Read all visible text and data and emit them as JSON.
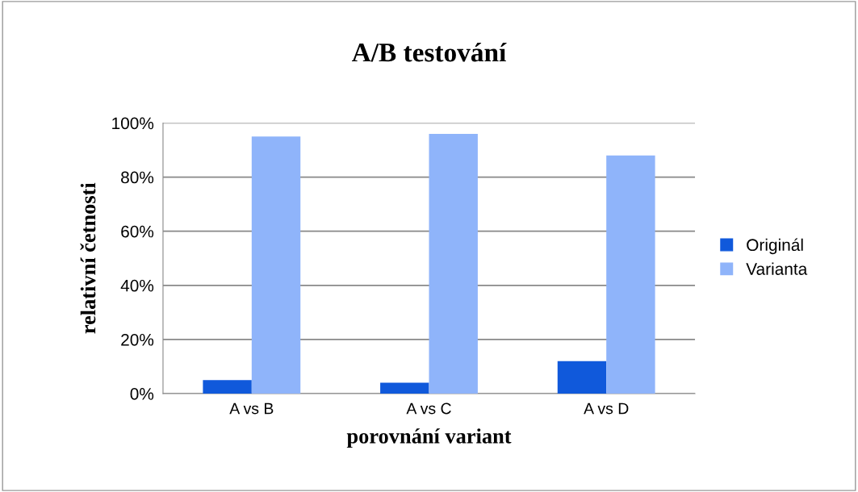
{
  "chart_data": {
    "type": "bar",
    "title": "A/B testování",
    "xlabel": "porovnání variant",
    "ylabel": "relativní četnosti",
    "categories": [
      "A vs B",
      "A vs C",
      "A vs D"
    ],
    "series": [
      {
        "name": "Originál",
        "color": "#1059db",
        "values": [
          5,
          4,
          12
        ]
      },
      {
        "name": "Varianta",
        "color": "#8fb4fa",
        "values": [
          95,
          96,
          88
        ]
      }
    ],
    "ylim": [
      0,
      100
    ],
    "yticks": [
      {
        "value": 0,
        "label": "0%"
      },
      {
        "value": 20,
        "label": "20%"
      },
      {
        "value": 40,
        "label": "40%"
      },
      {
        "value": 60,
        "label": "60%"
      },
      {
        "value": 80,
        "label": "80%"
      },
      {
        "value": 100,
        "label": "100%"
      }
    ],
    "grid": "y",
    "legend": "right"
  }
}
